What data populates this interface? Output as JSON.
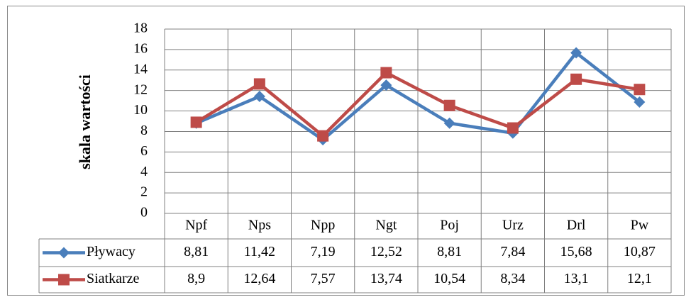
{
  "chart_data": {
    "type": "line",
    "y_label": "skala wartości",
    "categories": [
      "Npf",
      "Nps",
      "Npp",
      "Ngt",
      "Poj",
      "Urz",
      "Drl",
      "Pw"
    ],
    "series": [
      {
        "name": "Pływacy",
        "color": "#4a7ebb",
        "marker": "diamond",
        "values": [
          8.81,
          11.42,
          7.19,
          12.52,
          8.81,
          7.84,
          15.68,
          10.87
        ],
        "value_labels": [
          "8,81",
          "11,42",
          "7,19",
          "12,52",
          "8,81",
          "7,84",
          "15,68",
          "10,87"
        ]
      },
      {
        "name": "Siatkarze",
        "color": "#be4b48",
        "marker": "square",
        "values": [
          8.9,
          12.64,
          7.57,
          13.74,
          10.54,
          8.34,
          13.1,
          12.1
        ],
        "value_labels": [
          "8,9",
          "12,64",
          "7,57",
          "13,74",
          "10,54",
          "8,34",
          "13,1",
          "12,1"
        ]
      }
    ],
    "ylim": [
      0,
      18
    ],
    "yticks": [
      0,
      2,
      4,
      6,
      8,
      10,
      12,
      14,
      16,
      18
    ],
    "grid": true
  }
}
